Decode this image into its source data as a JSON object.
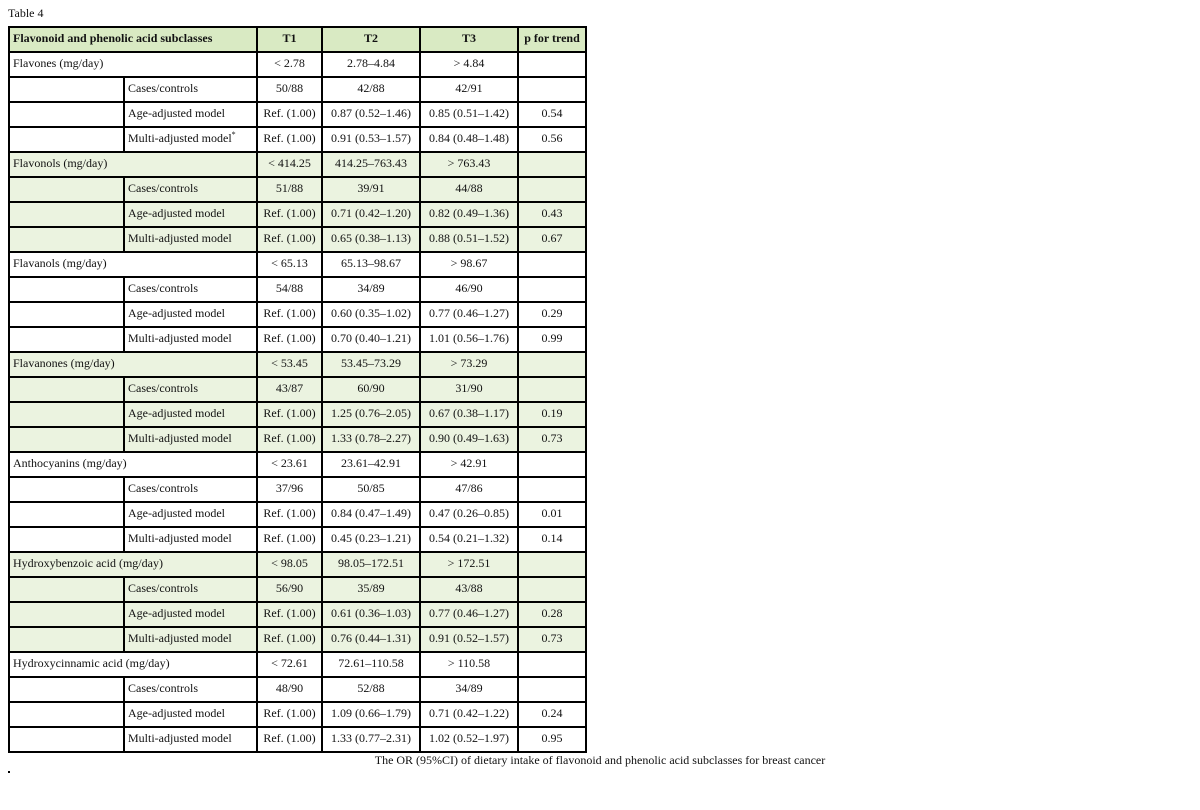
{
  "title": "Table 4",
  "caption": "The OR (95%CI) of dietary intake of flavonoid and phenolic acid subclasses for breast cancer",
  "colors": {
    "header_bg": "#d9eac3",
    "shaded_row_bg": "#ebf3e0",
    "border": "#000000"
  },
  "headers": [
    "Flavonoid and phenolic acid subclasses",
    "T1",
    "T2",
    "T3",
    "p for trend"
  ],
  "footnote_marker": "*",
  "groups": [
    {
      "name": "Flavones (mg/day)",
      "shaded": false,
      "ranges": [
        "< 2.78",
        "2.78–4.84",
        "> 4.84"
      ],
      "rows": [
        {
          "label": "Cases/controls",
          "t1": "50/88",
          "t2": "42/88",
          "t3": "42/91",
          "p": ""
        },
        {
          "label": "Age-adjusted model",
          "t1": "Ref. (1.00)",
          "t2": "0.87 (0.52–1.46)",
          "t3": "0.85 (0.51–1.42)",
          "p": "0.54"
        },
        {
          "label": "Multi-adjusted model",
          "footnote": true,
          "t1": "Ref. (1.00)",
          "t2": "0.91 (0.53–1.57)",
          "t3": "0.84 (0.48–1.48)",
          "p": "0.56"
        }
      ]
    },
    {
      "name": "Flavonols (mg/day)",
      "shaded": true,
      "ranges": [
        "< 414.25",
        "414.25–763.43",
        "> 763.43"
      ],
      "rows": [
        {
          "label": "Cases/controls",
          "t1": "51/88",
          "t2": "39/91",
          "t3": "44/88",
          "p": ""
        },
        {
          "label": "Age-adjusted model",
          "t1": "Ref. (1.00)",
          "t2": "0.71 (0.42–1.20)",
          "t3": "0.82 (0.49–1.36)",
          "p": "0.43"
        },
        {
          "label": "Multi-adjusted model",
          "t1": "Ref. (1.00)",
          "t2": "0.65 (0.38–1.13)",
          "t3": "0.88 (0.51–1.52)",
          "p": "0.67"
        }
      ]
    },
    {
      "name": "Flavanols (mg/day)",
      "shaded": false,
      "ranges": [
        "< 65.13",
        "65.13–98.67",
        "> 98.67"
      ],
      "rows": [
        {
          "label": "Cases/controls",
          "t1": "54/88",
          "t2": "34/89",
          "t3": "46/90",
          "p": ""
        },
        {
          "label": "Age-adjusted model",
          "t1": "Ref. (1.00)",
          "t2": "0.60 (0.35–1.02)",
          "t3": "0.77 (0.46–1.27)",
          "p": "0.29"
        },
        {
          "label": "Multi-adjusted model",
          "t1": "Ref. (1.00)",
          "t2": "0.70 (0.40–1.21)",
          "t3": "1.01 (0.56–1.76)",
          "p": "0.99"
        }
      ]
    },
    {
      "name": "Flavanones (mg/day)",
      "shaded": true,
      "ranges": [
        "< 53.45",
        "53.45–73.29",
        "> 73.29"
      ],
      "rows": [
        {
          "label": "Cases/controls",
          "t1": "43/87",
          "t2": "60/90",
          "t3": "31/90",
          "p": ""
        },
        {
          "label": "Age-adjusted model",
          "t1": "Ref. (1.00)",
          "t2": "1.25 (0.76–2.05)",
          "t3": "0.67 (0.38–1.17)",
          "p": "0.19"
        },
        {
          "label": "Multi-adjusted model",
          "t1": "Ref. (1.00)",
          "t2": "1.33 (0.78–2.27)",
          "t3": "0.90 (0.49–1.63)",
          "p": "0.73"
        }
      ]
    },
    {
      "name": "Anthocyanins (mg/day)",
      "shaded": false,
      "ranges": [
        "< 23.61",
        "23.61–42.91",
        "> 42.91"
      ],
      "rows": [
        {
          "label": "Cases/controls",
          "t1": "37/96",
          "t2": "50/85",
          "t3": "47/86",
          "p": ""
        },
        {
          "label": "Age-adjusted model",
          "t1": "Ref. (1.00)",
          "t2": "0.84 (0.47–1.49)",
          "t3": "0.47 (0.26–0.85)",
          "p": "0.01"
        },
        {
          "label": "Multi-adjusted model",
          "t1": "Ref. (1.00)",
          "t2": "0.45 (0.23–1.21)",
          "t3": "0.54 (0.21–1.32)",
          "p": "0.14"
        }
      ]
    },
    {
      "name": "Hydroxybenzoic acid (mg/day)",
      "shaded": true,
      "ranges": [
        "< 98.05",
        "98.05–172.51",
        "> 172.51"
      ],
      "rows": [
        {
          "label": "Cases/controls",
          "t1": "56/90",
          "t2": "35/89",
          "t3": "43/88",
          "p": ""
        },
        {
          "label": "Age-adjusted model",
          "t1": "Ref. (1.00)",
          "t2": "0.61 (0.36–1.03)",
          "t3": "0.77 (0.46–1.27)",
          "p": "0.28"
        },
        {
          "label": "Multi-adjusted model",
          "t1": "Ref. (1.00)",
          "t2": "0.76 (0.44–1.31)",
          "t3": "0.91 (0.52–1.57)",
          "p": "0.73"
        }
      ]
    },
    {
      "name": "Hydroxycinnamic acid (mg/day)",
      "shaded": false,
      "ranges": [
        "< 72.61",
        "72.61–110.58",
        "> 110.58"
      ],
      "rows": [
        {
          "label": "Cases/controls",
          "t1": "48/90",
          "t2": "52/88",
          "t3": "34/89",
          "p": ""
        },
        {
          "label": "Age-adjusted model",
          "t1": "Ref. (1.00)",
          "t2": "1.09 (0.66–1.79)",
          "t3": "0.71 (0.42–1.22)",
          "p": "0.24"
        },
        {
          "label": "Multi-adjusted model",
          "t1": "Ref. (1.00)",
          "t2": "1.33 (0.77–2.31)",
          "t3": "1.02 (0.52–1.97)",
          "p": "0.95"
        }
      ]
    }
  ]
}
